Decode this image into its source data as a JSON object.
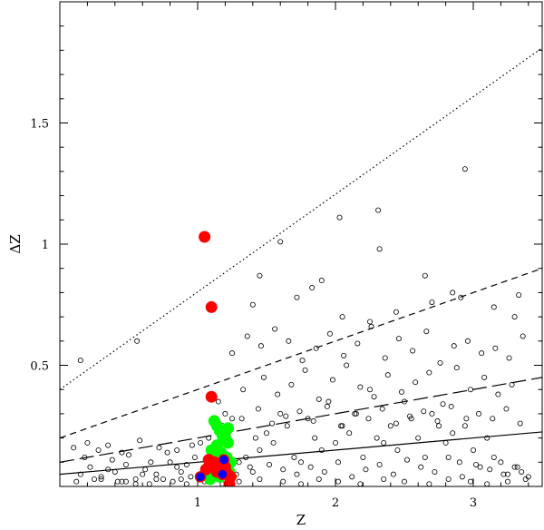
{
  "chart_data": {
    "type": "scatter",
    "title": "",
    "xlabel": "Z",
    "ylabel": "ΔZ",
    "xlim": [
      0.0,
      3.5
    ],
    "ylim": [
      0.0,
      2.0
    ],
    "x_ticks": [
      1,
      2,
      3
    ],
    "y_ticks": [
      0.5,
      1,
      1.5
    ],
    "grid": false,
    "legend": "none",
    "colors": {
      "open": "#000000",
      "red": "#ff0000",
      "green": "#00ff00",
      "blue": "#0000ff"
    },
    "lines": [
      {
        "style": "dotted",
        "x": [
          0.0,
          3.5
        ],
        "y": [
          0.4,
          1.81
        ]
      },
      {
        "style": "short-dash",
        "x": [
          0.0,
          3.5
        ],
        "y": [
          0.2,
          0.9
        ]
      },
      {
        "style": "long-dash",
        "x": [
          0.0,
          3.5
        ],
        "y": [
          0.1,
          0.45
        ]
      },
      {
        "style": "solid",
        "x": [
          0.0,
          3.5
        ],
        "y": [
          0.05,
          0.225
        ]
      }
    ],
    "series": [
      {
        "marker": "open-circle",
        "x": [
          0.15,
          0.22,
          0.3,
          0.4,
          0.48,
          0.55,
          0.62,
          0.7,
          0.8,
          0.88,
          0.95,
          0.12,
          0.25,
          0.35,
          0.45,
          0.6,
          0.75,
          0.85,
          0.92,
          0.18,
          0.28,
          0.38,
          0.5,
          0.66,
          0.78,
          0.98,
          1.02,
          1.08,
          1.12,
          1.18,
          1.22,
          1.25,
          1.3,
          1.35,
          1.38,
          1.42,
          1.45,
          1.5,
          1.55,
          1.6,
          1.65,
          1.7,
          1.75,
          1.8,
          1.85,
          1.9,
          1.95,
          2.0,
          2.05,
          2.1,
          2.15,
          2.2,
          2.25,
          2.3,
          2.35,
          2.4,
          2.45,
          2.5,
          2.55,
          2.6,
          2.65,
          2.7,
          2.75,
          2.8,
          2.85,
          2.9,
          2.95,
          3.0,
          3.05,
          3.1,
          3.15,
          3.2,
          3.25,
          3.3,
          3.35,
          3.4,
          1.28,
          1.4,
          1.52,
          1.62,
          1.72,
          1.82,
          1.92,
          2.02,
          2.12,
          2.22,
          2.32,
          2.42,
          2.52,
          2.62,
          2.72,
          2.82,
          2.92,
          3.02,
          3.12,
          3.22,
          3.32,
          1.15,
          1.33,
          1.48,
          1.58,
          1.68,
          1.78,
          1.88,
          1.98,
          2.08,
          2.18,
          2.28,
          2.38,
          2.48,
          2.58,
          2.68,
          2.78,
          2.88,
          2.98,
          3.08,
          3.18,
          3.28,
          1.25,
          1.36,
          1.46,
          1.56,
          1.66,
          1.76,
          1.86,
          1.96,
          2.06,
          2.16,
          2.26,
          2.36,
          2.46,
          2.56,
          2.66,
          2.76,
          2.86,
          2.96,
          3.06,
          3.16,
          3.26,
          3.36,
          1.2,
          1.32,
          1.44,
          1.54,
          1.64,
          1.74,
          1.84,
          1.94,
          2.04,
          2.14,
          2.24,
          2.34,
          2.44,
          2.54,
          2.64,
          2.74,
          2.84,
          2.94,
          3.04,
          3.14,
          3.24,
          3.34,
          2.94,
          2.03,
          2.31,
          2.32,
          1.6,
          1.45,
          1.9,
          2.65,
          2.85,
          2.91,
          3.33,
          0.56,
          0.15,
          1.4,
          1.72,
          1.83,
          2.05,
          2.25,
          2.44,
          2.7,
          3.15,
          3.3,
          0.42,
          0.55,
          0.7,
          0.82,
          0.92,
          0.3,
          0.48,
          0.65,
          0.88,
          1.05,
          1.12,
          1.18,
          1.3,
          1.45,
          1.62,
          1.75,
          1.88,
          2.02,
          2.18,
          2.35,
          2.5,
          2.68,
          2.82,
          2.98,
          3.1,
          3.25,
          3.38,
          0.1,
          0.2,
          0.35,
          0.45,
          0.58,
          0.72,
          0.85,
          0.96
        ],
        "y": [
          0.05,
          0.08,
          0.04,
          0.06,
          0.09,
          0.03,
          0.07,
          0.05,
          0.1,
          0.06,
          0.04,
          0.02,
          0.03,
          0.07,
          0.02,
          0.05,
          0.03,
          0.08,
          0.09,
          0.12,
          0.15,
          0.11,
          0.13,
          0.1,
          0.14,
          0.12,
          0.18,
          0.2,
          0.15,
          0.25,
          0.22,
          0.28,
          0.1,
          0.12,
          0.08,
          0.2,
          0.15,
          0.22,
          0.18,
          0.3,
          0.25,
          0.12,
          0.1,
          0.28,
          0.2,
          0.15,
          0.35,
          0.18,
          0.25,
          0.22,
          0.3,
          0.12,
          0.4,
          0.2,
          0.18,
          0.25,
          0.15,
          0.35,
          0.28,
          0.2,
          0.12,
          0.3,
          0.25,
          0.18,
          0.22,
          0.1,
          0.28,
          0.15,
          0.08,
          0.2,
          0.12,
          0.1,
          0.05,
          0.08,
          0.06,
          0.04,
          0.05,
          0.06,
          0.09,
          0.07,
          0.05,
          0.08,
          0.06,
          0.1,
          0.04,
          0.07,
          0.09,
          0.05,
          0.11,
          0.08,
          0.06,
          0.12,
          0.04,
          0.09,
          0.07,
          0.05,
          0.08,
          0.35,
          0.4,
          0.45,
          0.38,
          0.42,
          0.48,
          0.36,
          0.44,
          0.5,
          0.41,
          0.37,
          0.46,
          0.39,
          0.43,
          0.47,
          0.34,
          0.49,
          0.4,
          0.45,
          0.38,
          0.42,
          0.55,
          0.62,
          0.58,
          0.65,
          0.6,
          0.52,
          0.57,
          0.63,
          0.54,
          0.59,
          0.66,
          0.53,
          0.61,
          0.56,
          0.64,
          0.51,
          0.58,
          0.6,
          0.55,
          0.57,
          0.53,
          0.62,
          0.3,
          0.28,
          0.32,
          0.26,
          0.29,
          0.31,
          0.27,
          0.33,
          0.25,
          0.3,
          0.28,
          0.32,
          0.26,
          0.29,
          0.31,
          0.27,
          0.33,
          0.25,
          0.3,
          0.28,
          0.32,
          0.26,
          1.31,
          1.11,
          1.14,
          0.98,
          1.01,
          0.87,
          0.85,
          0.87,
          0.8,
          0.78,
          0.79,
          0.6,
          0.52,
          0.75,
          0.78,
          0.82,
          0.7,
          0.68,
          0.72,
          0.76,
          0.74,
          0.7,
          0.02,
          0.01,
          0.03,
          0.02,
          0.01,
          0.03,
          0.02,
          0.01,
          0.03,
          0.02,
          0.03,
          0.01,
          0.02,
          0.03,
          0.02,
          0.01,
          0.03,
          0.02,
          0.01,
          0.03,
          0.02,
          0.01,
          0.03,
          0.02,
          0.01,
          0.02,
          0.03,
          0.16,
          0.18,
          0.17,
          0.14,
          0.19,
          0.16,
          0.15,
          0.17
        ]
      },
      {
        "marker": "green-filled",
        "x": [
          1.12,
          1.14,
          1.16,
          1.18,
          1.2,
          1.22,
          1.1,
          1.13,
          1.17,
          1.21,
          1.24,
          1.15,
          1.19,
          1.08,
          1.23,
          1.11,
          1.16,
          1.2,
          1.14,
          1.18,
          1.22,
          1.09
        ],
        "y": [
          0.27,
          0.25,
          0.23,
          0.21,
          0.2,
          0.18,
          0.15,
          0.13,
          0.14,
          0.12,
          0.1,
          0.09,
          0.08,
          0.07,
          0.06,
          0.05,
          0.04,
          0.11,
          0.17,
          0.22,
          0.24,
          0.03
        ]
      },
      {
        "marker": "red-filled",
        "x": [
          1.05,
          1.1,
          1.1,
          1.08,
          1.12,
          1.16,
          1.2,
          1.06,
          1.14,
          1.22,
          1.18,
          1.24,
          1.09,
          1.13,
          1.15,
          1.23
        ],
        "y": [
          1.03,
          0.74,
          0.37,
          0.11,
          0.1,
          0.09,
          0.08,
          0.07,
          0.06,
          0.05,
          0.05,
          0.04,
          0.09,
          0.08,
          0.07,
          0.01
        ]
      },
      {
        "marker": "blue-filled",
        "x": [
          1.02,
          1.19,
          1.18
        ],
        "y": [
          0.04,
          0.11,
          0.05
        ]
      }
    ]
  }
}
